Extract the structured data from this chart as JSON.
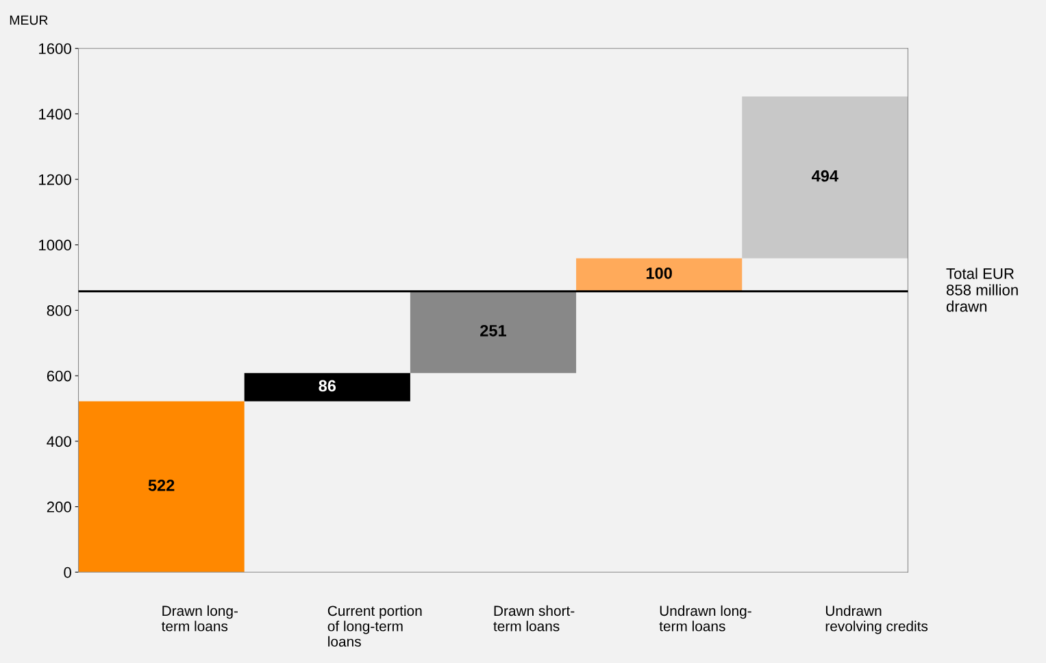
{
  "chart_data": {
    "type": "bar",
    "ylabel": "MEUR",
    "categories": [
      "Drawn long-\nterm loans",
      "Current portion\nof long-term\nloans",
      "Drawn short-\nterm loans",
      "Undrawn long-\nterm loans",
      "Undrawn\nrevolving credits"
    ],
    "values": [
      522,
      86,
      251,
      100,
      494
    ],
    "base": [
      0,
      522,
      608,
      859,
      959
    ],
    "colors": [
      "#ff8800",
      "#000000",
      "#888888",
      "#ffaa5a",
      "#c8c8c8"
    ],
    "data_labels": true,
    "ylim": [
      0,
      1600
    ],
    "yticks": [
      0,
      200,
      400,
      600,
      800,
      1000,
      1200,
      1400,
      1600
    ],
    "ref_lines": [
      {
        "axis": "y",
        "value": 858,
        "label": "Total EUR\n858 million\ndrawn",
        "color": "#000000"
      }
    ],
    "legend": false
  }
}
